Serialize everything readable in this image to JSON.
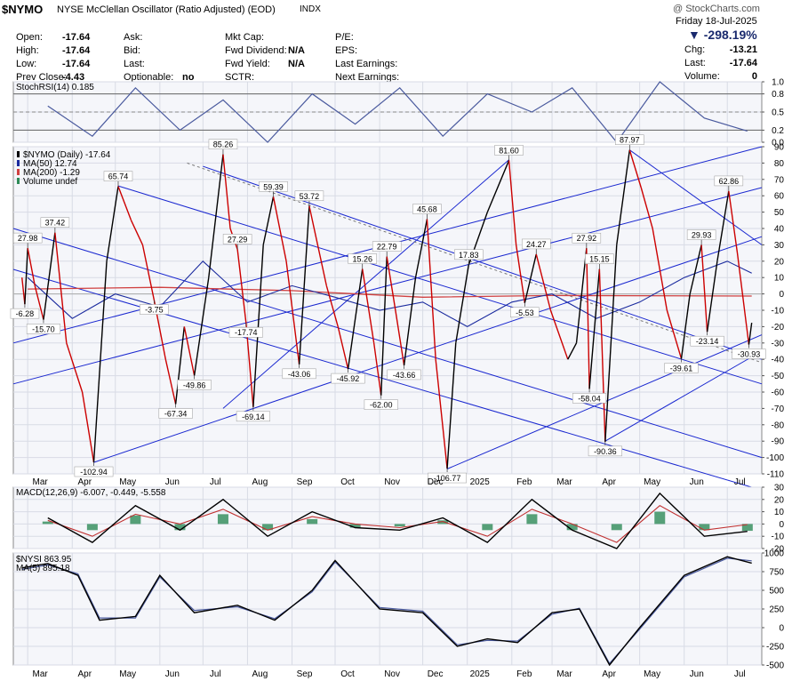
{
  "header": {
    "symbol": "$NYMO",
    "name": "NYSE McClellan Oscillator (Ratio Adjusted) (EOD)",
    "exchange": "INDX",
    "watermark": "@ StockCharts.com",
    "date": "Friday 18-Jul-2025",
    "change_pct": "-298.19%",
    "col1": [
      {
        "label": "Open:",
        "value": "-17.64"
      },
      {
        "label": "High:",
        "value": "-17.64"
      },
      {
        "label": "Low:",
        "value": "-17.64"
      },
      {
        "label": "Prev Close:",
        "value": "-4.43"
      }
    ],
    "col2": [
      {
        "label": "Ask:",
        "value": ""
      },
      {
        "label": "Bid:",
        "value": ""
      },
      {
        "label": "Last:",
        "value": ""
      },
      {
        "label": "Optionable:",
        "value": "no"
      }
    ],
    "col3": [
      {
        "label": "Mkt Cap:",
        "value": ""
      },
      {
        "label": "Fwd Dividend:",
        "value": "N/A"
      },
      {
        "label": "Fwd Yield:",
        "value": "N/A"
      },
      {
        "label": "SCTR:",
        "value": ""
      }
    ],
    "col4": [
      {
        "label": "P/E:",
        "value": ""
      },
      {
        "label": "EPS:",
        "value": ""
      },
      {
        "label": "Last Earnings:",
        "value": ""
      },
      {
        "label": "Next Earnings:",
        "value": ""
      }
    ],
    "col5": [
      {
        "label": "Chg:",
        "value": "-13.21"
      },
      {
        "label": "Last:",
        "value": "-17.64"
      },
      {
        "label": "Volume:",
        "value": "0"
      }
    ]
  },
  "colors": {
    "up": "#000000",
    "down": "#cc0000",
    "ma_blue": "#1a2a9e",
    "trend": "#1a28d0",
    "hist": "#2e8b57",
    "fill": "#7fb8a8"
  },
  "chart_data": [
    {
      "type": "line",
      "panel": "stochrsi",
      "legend": [
        "StochRSI(14) 0.185"
      ],
      "ylim": [
        0,
        1
      ],
      "yticks": [
        "1.0",
        "0.8",
        "0.5",
        "0.2",
        "0.0"
      ],
      "x": [
        "2024-03",
        "2024-04",
        "2024-05",
        "2024-06",
        "2024-07",
        "2024-08",
        "2024-09",
        "2024-10",
        "2024-11",
        "2024-12",
        "2025-01",
        "2025-02",
        "2025-03",
        "2025-04",
        "2025-05",
        "2025-06",
        "2025-07"
      ],
      "values": [
        0.6,
        0.1,
        0.9,
        0.2,
        0.7,
        0.0,
        0.8,
        0.3,
        0.9,
        0.1,
        0.8,
        0.5,
        0.9,
        0.0,
        1.0,
        0.4,
        0.185
      ]
    },
    {
      "type": "line",
      "panel": "main",
      "legend": [
        "$NYMO (Daily) -17.64",
        "MA(50) 12.74",
        "MA(200) -1.29",
        "Volume undef"
      ],
      "ylim": [
        -110,
        90
      ],
      "yticks": [
        90,
        80,
        70,
        60,
        50,
        40,
        30,
        20,
        10,
        0,
        -10,
        -20,
        -30,
        -40,
        -50,
        -60,
        -70,
        -80,
        -90,
        -100,
        -110
      ],
      "xticks": [
        "Mar",
        "Apr",
        "May",
        "Jun",
        "Jul",
        "Aug",
        "Sep",
        "Oct",
        "Nov",
        "Dec",
        "2025",
        "Feb",
        "Mar",
        "Apr",
        "May",
        "Jun",
        "Jul"
      ],
      "annotations": [
        {
          "label": "-6.28",
          "x": "2024-02-28",
          "value": -6.28
        },
        {
          "label": "27.98",
          "x": "2024-03-01",
          "value": 27.98
        },
        {
          "label": "-15.70",
          "x": "2024-03-12",
          "value": -15.7
        },
        {
          "label": "37.42",
          "x": "2024-03-20",
          "value": 37.42
        },
        {
          "label": "-102.94",
          "x": "2024-04-16",
          "value": -102.94
        },
        {
          "label": "65.74",
          "x": "2024-05-03",
          "value": 65.74
        },
        {
          "label": "-3.75",
          "x": "2024-05-28",
          "value": -3.75
        },
        {
          "label": "-67.34",
          "x": "2024-06-12",
          "value": -67.34
        },
        {
          "label": "-49.86",
          "x": "2024-06-25",
          "value": -49.86
        },
        {
          "label": "85.26",
          "x": "2024-07-15",
          "value": 85.26
        },
        {
          "label": "27.29",
          "x": "2024-07-25",
          "value": 27.29
        },
        {
          "label": "-17.74",
          "x": "2024-07-31",
          "value": -17.74
        },
        {
          "label": "-69.14",
          "x": "2024-08-05",
          "value": -69.14
        },
        {
          "label": "59.39",
          "x": "2024-08-19",
          "value": 59.39
        },
        {
          "label": "53.72",
          "x": "2024-09-13",
          "value": 53.72
        },
        {
          "label": "-43.06",
          "x": "2024-09-06",
          "value": -43.06
        },
        {
          "label": "-45.92",
          "x": "2024-10-10",
          "value": -45.92
        },
        {
          "label": "15.26",
          "x": "2024-10-20",
          "value": 15.26
        },
        {
          "label": "22.79",
          "x": "2024-11-06",
          "value": 22.79
        },
        {
          "label": "-62.00",
          "x": "2024-11-02",
          "value": -62.0
        },
        {
          "label": "-43.66",
          "x": "2024-11-18",
          "value": -43.66
        },
        {
          "label": "45.68",
          "x": "2024-12-04",
          "value": 45.68
        },
        {
          "label": "-106.77",
          "x": "2024-12-18",
          "value": -106.77
        },
        {
          "label": "17.83",
          "x": "2025-01-02",
          "value": 17.83
        },
        {
          "label": "81.60",
          "x": "2025-01-30",
          "value": 81.6
        },
        {
          "label": "-5.53",
          "x": "2025-02-10",
          "value": -5.53
        },
        {
          "label": "24.27",
          "x": "2025-02-18",
          "value": 24.27
        },
        {
          "label": "27.92",
          "x": "2025-03-25",
          "value": 27.92
        },
        {
          "label": "-58.04",
          "x": "2025-03-27",
          "value": -58.04
        },
        {
          "label": "15.15",
          "x": "2025-04-03",
          "value": 15.15
        },
        {
          "label": "-90.36",
          "x": "2025-04-07",
          "value": -90.36
        },
        {
          "label": "87.97",
          "x": "2025-04-24",
          "value": 87.97
        },
        {
          "label": "-39.61",
          "x": "2025-05-30",
          "value": -39.61
        },
        {
          "label": "29.93",
          "x": "2025-06-13",
          "value": 29.93
        },
        {
          "label": "-23.14",
          "x": "2025-06-17",
          "value": -23.14
        },
        {
          "label": "62.86",
          "x": "2025-07-02",
          "value": 62.86
        },
        {
          "label": "-30.93",
          "x": "2025-07-16",
          "value": -30.93
        }
      ],
      "series": [
        {
          "name": "$NYMO (Daily)",
          "x": [
            "2024-02-26",
            "2024-02-28",
            "2024-03-01",
            "2024-03-06",
            "2024-03-12",
            "2024-03-20",
            "2024-03-28",
            "2024-04-08",
            "2024-04-16",
            "2024-04-25",
            "2024-05-03",
            "2024-05-12",
            "2024-05-20",
            "2024-05-28",
            "2024-06-05",
            "2024-06-12",
            "2024-06-18",
            "2024-06-25",
            "2024-07-05",
            "2024-07-15",
            "2024-07-20",
            "2024-07-25",
            "2024-07-31",
            "2024-08-05",
            "2024-08-12",
            "2024-08-19",
            "2024-08-28",
            "2024-09-06",
            "2024-09-13",
            "2024-09-25",
            "2024-10-03",
            "2024-10-10",
            "2024-10-20",
            "2024-10-28",
            "2024-11-02",
            "2024-11-06",
            "2024-11-12",
            "2024-11-18",
            "2024-11-26",
            "2024-12-04",
            "2024-12-10",
            "2024-12-18",
            "2024-12-24",
            "2025-01-02",
            "2025-01-15",
            "2025-01-30",
            "2025-02-04",
            "2025-02-10",
            "2025-02-18",
            "2025-02-28",
            "2025-03-12",
            "2025-03-18",
            "2025-03-25",
            "2025-03-27",
            "2025-04-03",
            "2025-04-07",
            "2025-04-15",
            "2025-04-24",
            "2025-05-02",
            "2025-05-10",
            "2025-05-20",
            "2025-05-30",
            "2025-06-05",
            "2025-06-13",
            "2025-06-17",
            "2025-06-24",
            "2025-07-02",
            "2025-07-08",
            "2025-07-16",
            "2025-07-18"
          ],
          "values": [
            10,
            -6.28,
            27.98,
            5,
            -15.7,
            37.42,
            -30,
            -60,
            -102.94,
            20,
            65.74,
            45,
            30,
            -3.75,
            -40,
            -67.34,
            -20,
            -49.86,
            10,
            85.26,
            40,
            27.29,
            -17.74,
            -69.14,
            30,
            59.39,
            20,
            -43.06,
            53.72,
            5,
            -20,
            -45.92,
            15.26,
            -30,
            -62.0,
            22.79,
            -10,
            -43.66,
            10,
            45.68,
            -40,
            -106.77,
            -30,
            17.83,
            50,
            81.6,
            30,
            -5.53,
            24.27,
            -10,
            -40,
            -30,
            27.92,
            -58.04,
            15.15,
            -90.36,
            30,
            87.97,
            65,
            40,
            -10,
            -39.61,
            0,
            29.93,
            -23.14,
            20,
            62.86,
            25,
            -30.93,
            -17.64
          ]
        },
        {
          "name": "MA(50)",
          "x": [
            "2024-03-01",
            "2024-04-01",
            "2024-05-01",
            "2024-06-01",
            "2024-07-01",
            "2024-08-01",
            "2024-09-01",
            "2024-10-01",
            "2024-11-01",
            "2024-12-01",
            "2025-01-01",
            "2025-02-01",
            "2025-03-01",
            "2025-04-01",
            "2025-05-01",
            "2025-06-01",
            "2025-07-01",
            "2025-07-18"
          ],
          "values": [
            10,
            -15,
            0,
            -8,
            20,
            -5,
            5,
            -2,
            -10,
            -5,
            -20,
            -5,
            0,
            -15,
            -5,
            10,
            20,
            12.74
          ]
        },
        {
          "name": "MA(200)",
          "x": [
            "2024-03-01",
            "2024-06-01",
            "2024-09-01",
            "2024-12-01",
            "2025-03-01",
            "2025-07-18"
          ],
          "values": [
            3,
            4,
            2,
            -2,
            -1,
            -1.29
          ]
        }
      ]
    },
    {
      "type": "line",
      "panel": "macd",
      "legend": [
        "MACD(12,26,9) -6.007, -0.449, -5.558"
      ],
      "ylim": [
        -20,
        30
      ],
      "yticks": [
        30,
        20,
        10,
        0,
        -10,
        -20
      ],
      "x": [
        "2024-03",
        "2024-04",
        "2024-05",
        "2024-06",
        "2024-07",
        "2024-08",
        "2024-09",
        "2024-10",
        "2024-11",
        "2024-12",
        "2025-01",
        "2025-02",
        "2025-03",
        "2025-04",
        "2025-05",
        "2025-06",
        "2025-07"
      ],
      "series": [
        {
          "name": "MACD",
          "values": [
            5,
            -15,
            15,
            -5,
            20,
            -10,
            10,
            -3,
            -5,
            5,
            -15,
            20,
            -5,
            -20,
            25,
            -10,
            -6.007
          ]
        },
        {
          "name": "Signal",
          "values": [
            3,
            -10,
            8,
            0,
            12,
            -5,
            6,
            0,
            -3,
            2,
            -10,
            12,
            0,
            -15,
            15,
            -5,
            -0.449
          ]
        },
        {
          "name": "Histogram",
          "values": [
            2,
            -5,
            7,
            -5,
            8,
            -5,
            4,
            -3,
            -2,
            3,
            -5,
            8,
            -5,
            -5,
            10,
            -5,
            -5.558
          ]
        }
      ]
    },
    {
      "type": "line",
      "panel": "nysi",
      "legend": [
        "$NYSI 863.95",
        "MA(5) 895.18"
      ],
      "ylim": [
        -500,
        1000
      ],
      "yticks": [
        1000,
        750,
        500,
        250,
        0,
        -250,
        -500
      ],
      "xticks": [
        "Mar",
        "Apr",
        "May",
        "Jun",
        "Jul",
        "Aug",
        "Sep",
        "Oct",
        "Nov",
        "Dec",
        "2025",
        "Feb",
        "Mar",
        "Apr",
        "May",
        "Jun",
        "Jul"
      ],
      "series": [
        {
          "name": "$NYSI",
          "x": [
            "2024-02-26",
            "2024-03-15",
            "2024-04-05",
            "2024-04-20",
            "2024-05-15",
            "2024-06-01",
            "2024-06-25",
            "2024-07-25",
            "2024-08-20",
            "2024-09-15",
            "2024-10-01",
            "2024-11-01",
            "2024-12-01",
            "2024-12-25",
            "2025-01-15",
            "2025-02-05",
            "2025-03-01",
            "2025-03-20",
            "2025-04-10",
            "2025-05-01",
            "2025-06-01",
            "2025-07-01",
            "2025-07-18"
          ],
          "values": [
            800,
            860,
            700,
            100,
            150,
            700,
            200,
            300,
            100,
            500,
            900,
            250,
            200,
            -250,
            -150,
            -200,
            200,
            250,
            -500,
            0,
            700,
            950,
            863.95
          ]
        },
        {
          "name": "MA(5)",
          "x": [
            "2024-02-26",
            "2024-03-15",
            "2024-04-05",
            "2024-04-20",
            "2024-05-15",
            "2024-06-01",
            "2024-06-25",
            "2024-07-25",
            "2024-08-20",
            "2024-09-15",
            "2024-10-01",
            "2024-11-01",
            "2024-12-01",
            "2024-12-25",
            "2025-01-15",
            "2025-02-05",
            "2025-03-01",
            "2025-03-20",
            "2025-04-10",
            "2025-05-01",
            "2025-06-01",
            "2025-07-01",
            "2025-07-18"
          ],
          "values": [
            780,
            840,
            720,
            130,
            130,
            680,
            230,
            280,
            120,
            480,
            880,
            270,
            220,
            -230,
            -170,
            -180,
            180,
            260,
            -480,
            -20,
            680,
            930,
            895.18
          ]
        }
      ]
    }
  ]
}
